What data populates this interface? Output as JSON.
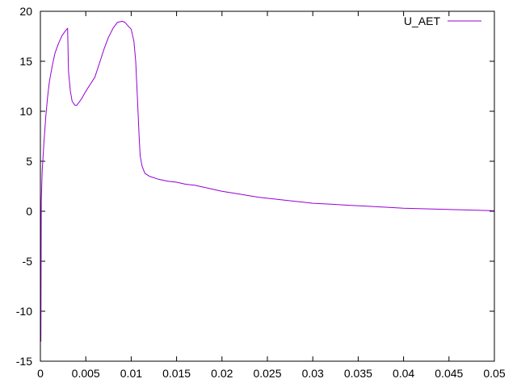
{
  "chart_data": {
    "type": "line",
    "title": "",
    "xlabel": "",
    "ylabel": "",
    "xlim": [
      0,
      0.05
    ],
    "ylim": [
      -15,
      20
    ],
    "grid": false,
    "legend_position": "top-right",
    "x_ticks": [
      {
        "value": 0,
        "label": "0"
      },
      {
        "value": 0.005,
        "label": "0.005"
      },
      {
        "value": 0.01,
        "label": "0.01"
      },
      {
        "value": 0.015,
        "label": "0.015"
      },
      {
        "value": 0.02,
        "label": "0.02"
      },
      {
        "value": 0.025,
        "label": "0.025"
      },
      {
        "value": 0.03,
        "label": "0.03"
      },
      {
        "value": 0.035,
        "label": "0.035"
      },
      {
        "value": 0.04,
        "label": "0.04"
      },
      {
        "value": 0.045,
        "label": "0.045"
      },
      {
        "value": 0.05,
        "label": "0.05"
      }
    ],
    "y_ticks": [
      {
        "value": -15,
        "label": "-15"
      },
      {
        "value": -10,
        "label": "-10"
      },
      {
        "value": -5,
        "label": "-5"
      },
      {
        "value": 0,
        "label": "0"
      },
      {
        "value": 5,
        "label": "5"
      },
      {
        "value": 10,
        "label": "10"
      },
      {
        "value": 15,
        "label": "15"
      },
      {
        "value": 20,
        "label": "20"
      }
    ],
    "series": [
      {
        "name": "U_AET",
        "color": "#9400d3",
        "x": [
          0,
          5e-05,
          0.0001,
          0.0002,
          0.0004,
          0.0006,
          0.0008,
          0.001,
          0.0013,
          0.0016,
          0.002,
          0.0024,
          0.0028,
          0.003,
          0.0031,
          0.0033,
          0.0035,
          0.0038,
          0.004,
          0.0045,
          0.005,
          0.0055,
          0.006,
          0.0065,
          0.007,
          0.0075,
          0.008,
          0.0085,
          0.009,
          0.0093,
          0.0096,
          0.01,
          0.0103,
          0.0105,
          0.0107,
          0.0109,
          0.011,
          0.0112,
          0.0115,
          0.012,
          0.013,
          0.014,
          0.015,
          0.016,
          0.017,
          0.018,
          0.019,
          0.02,
          0.022,
          0.024,
          0.026,
          0.028,
          0.03,
          0.032,
          0.034,
          0.036,
          0.038,
          0.04,
          0.042,
          0.044,
          0.046,
          0.048,
          0.05
        ],
        "y": [
          1.5,
          -13,
          1,
          4,
          7,
          9.5,
          11.5,
          13,
          14.5,
          15.8,
          16.8,
          17.6,
          18.1,
          18.3,
          14,
          12,
          11,
          10.6,
          10.6,
          11.2,
          12,
          12.7,
          13.4,
          14.8,
          16.2,
          17.4,
          18.3,
          18.9,
          19,
          18.9,
          18.6,
          18.2,
          17,
          15,
          11,
          7,
          5.5,
          4.5,
          3.8,
          3.5,
          3.2,
          3,
          2.9,
          2.7,
          2.6,
          2.4,
          2.2,
          2,
          1.7,
          1.4,
          1.2,
          1,
          0.8,
          0.7,
          0.6,
          0.5,
          0.4,
          0.3,
          0.25,
          0.2,
          0.15,
          0.1,
          0.05
        ]
      }
    ]
  }
}
